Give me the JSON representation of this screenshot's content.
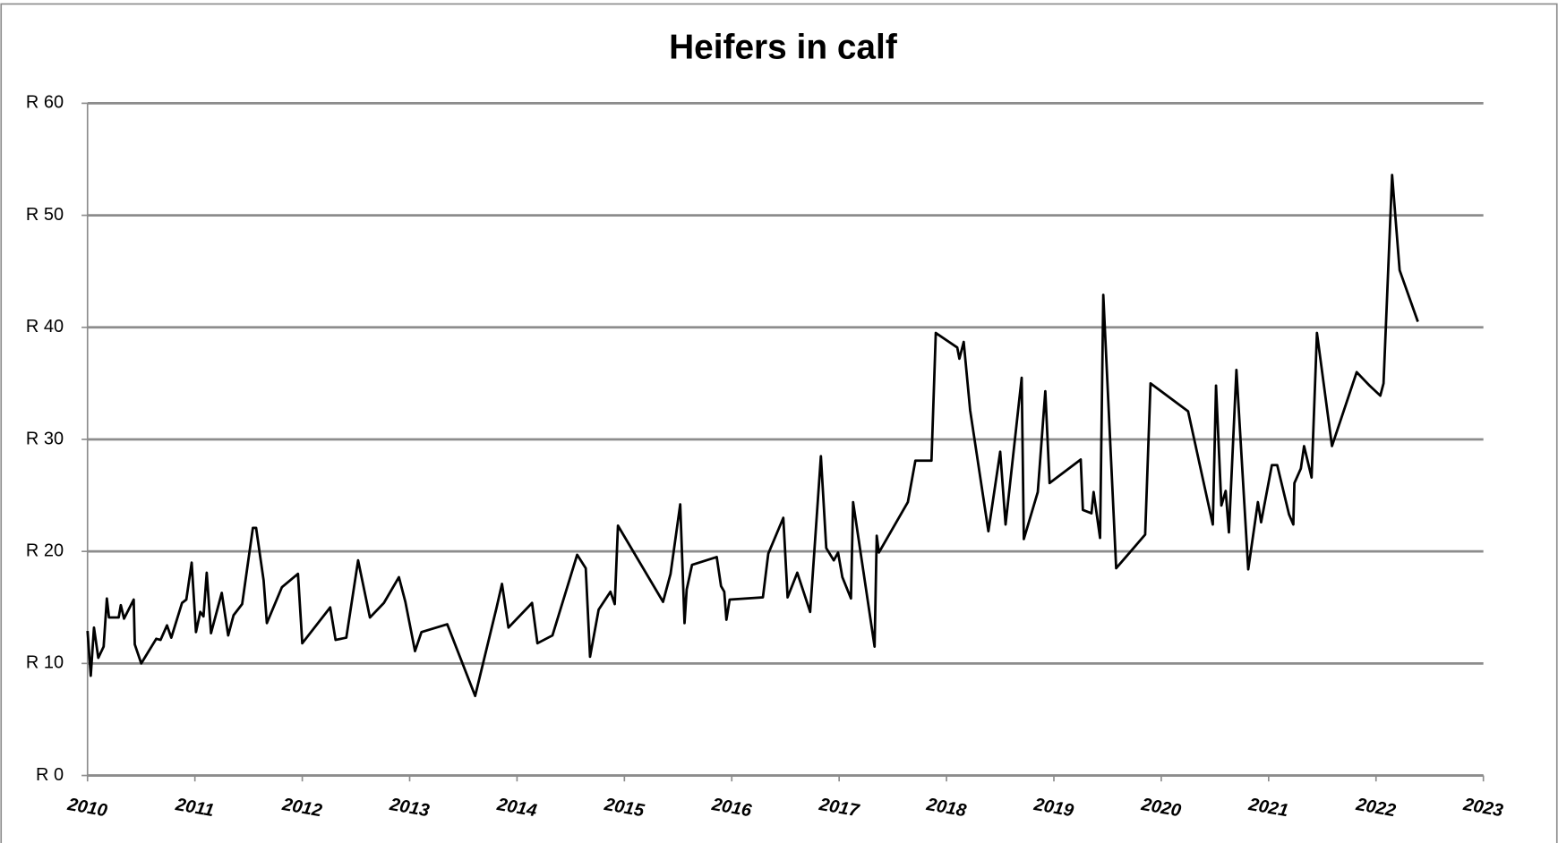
{
  "chart_data": {
    "type": "line",
    "title": "Heifers in calf",
    "xlim": [
      2010,
      2023
    ],
    "xticks": [
      2010,
      2011,
      2012,
      2013,
      2014,
      2015,
      2016,
      2017,
      2018,
      2019,
      2020,
      2021,
      2022,
      2023
    ],
    "ylim": [
      0,
      60
    ],
    "yticks": [
      {
        "value": 0,
        "label": "R 0"
      },
      {
        "value": 10,
        "label": "R 10"
      },
      {
        "value": 20,
        "label": "R 20"
      },
      {
        "value": 30,
        "label": "R 30"
      },
      {
        "value": 40,
        "label": "R 40"
      },
      {
        "value": 50,
        "label": "R 50"
      },
      {
        "value": 60,
        "label": "R 60"
      }
    ],
    "grid": true,
    "color": "#000000",
    "x": [
      2010.0,
      2010.03,
      2010.06,
      2010.1,
      2010.15,
      2010.18,
      2010.2,
      2010.29,
      2010.31,
      2010.34,
      2010.43,
      2010.44,
      2010.5,
      2010.64,
      2010.68,
      2010.74,
      2010.78,
      2010.88,
      2010.92,
      2010.97,
      2011.01,
      2011.05,
      2011.08,
      2011.11,
      2011.15,
      2011.25,
      2011.31,
      2011.36,
      2011.44,
      2011.54,
      2011.57,
      2011.64,
      2011.67,
      2011.81,
      2011.96,
      2012.0,
      2012.26,
      2012.31,
      2012.41,
      2012.52,
      2012.63,
      2012.76,
      2012.9,
      2012.96,
      2013.05,
      2013.11,
      2013.35,
      2013.61,
      2013.81,
      2013.86,
      2013.92,
      2014.14,
      2014.19,
      2014.33,
      2014.56,
      2014.64,
      2014.68,
      2014.76,
      2014.87,
      2014.91,
      2014.94,
      2015.36,
      2015.43,
      2015.52,
      2015.56,
      2015.58,
      2015.63,
      2015.86,
      2015.9,
      2015.93,
      2015.95,
      2015.98,
      2016.29,
      2016.34,
      2016.48,
      2016.52,
      2016.61,
      2016.73,
      2016.83,
      2016.88,
      2016.95,
      2016.99,
      2017.03,
      2017.11,
      2017.13,
      2017.33,
      2017.35,
      2017.37,
      2017.64,
      2017.71,
      2017.86,
      2017.9,
      2018.1,
      2018.12,
      2018.16,
      2018.22,
      2018.39,
      2018.5,
      2018.55,
      2018.7,
      2018.72,
      2018.85,
      2018.92,
      2018.96,
      2019.25,
      2019.27,
      2019.35,
      2019.37,
      2019.43,
      2019.46,
      2019.58,
      2019.85,
      2019.9,
      2020.25,
      2020.48,
      2020.51,
      2020.56,
      2020.6,
      2020.63,
      2020.7,
      2020.81,
      2020.9,
      2020.93,
      2021.03,
      2021.08,
      2021.19,
      2021.23,
      2021.24,
      2021.3,
      2021.33,
      2021.4,
      2021.45,
      2021.59,
      2021.82,
      2021.94,
      2022.04,
      2022.07,
      2022.15,
      2022.22,
      2022.39
    ],
    "values": [
      12.9,
      8.9,
      13.2,
      10.5,
      11.5,
      15.8,
      14.1,
      14.1,
      15.2,
      14.0,
      15.7,
      11.7,
      10.0,
      12.2,
      12.1,
      13.4,
      12.3,
      15.4,
      15.7,
      19.0,
      12.8,
      14.6,
      14.2,
      18.1,
      12.7,
      16.3,
      12.5,
      14.3,
      15.3,
      22.1,
      22.1,
      17.4,
      13.6,
      16.8,
      18.0,
      11.8,
      15.0,
      12.1,
      12.3,
      19.2,
      14.1,
      15.4,
      17.7,
      15.5,
      11.1,
      12.8,
      13.5,
      7.1,
      15.0,
      17.1,
      13.2,
      15.4,
      11.8,
      12.5,
      19.7,
      18.5,
      10.6,
      14.8,
      16.4,
      15.3,
      22.3,
      15.5,
      18.0,
      24.2,
      13.6,
      16.6,
      18.8,
      19.5,
      16.9,
      16.4,
      13.9,
      15.7,
      15.9,
      19.8,
      23.0,
      15.9,
      18.1,
      14.6,
      28.5,
      20.3,
      19.2,
      19.9,
      17.7,
      15.8,
      24.4,
      11.5,
      21.4,
      19.9,
      24.4,
      28.1,
      28.1,
      39.5,
      38.2,
      37.2,
      38.7,
      32.6,
      21.8,
      28.9,
      22.4,
      35.5,
      21.1,
      25.3,
      34.3,
      26.1,
      28.2,
      23.7,
      23.4,
      25.3,
      21.2,
      42.9,
      18.5,
      21.5,
      35.0,
      32.5,
      22.4,
      34.8,
      24.1,
      25.4,
      21.7,
      36.2,
      18.4,
      24.4,
      22.6,
      27.7,
      27.7,
      23.3,
      22.4,
      26.1,
      27.4,
      29.4,
      26.6,
      39.5,
      29.4,
      36.0,
      34.8,
      33.9,
      35.0,
      53.6,
      45.1,
      40.5
    ]
  }
}
